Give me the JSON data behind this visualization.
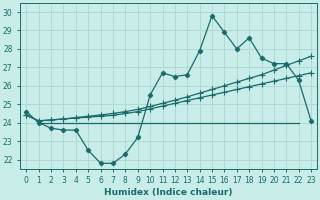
{
  "xlabel": "Humidex (Indice chaleur)",
  "ylabel": "",
  "bg_color": "#c8ece8",
  "grid_color": "#b0d8d4",
  "line_color": "#1a6b6b",
  "xlim": [
    -0.5,
    23.5
  ],
  "ylim": [
    21.5,
    30.5
  ],
  "yticks": [
    22,
    23,
    24,
    25,
    26,
    27,
    28,
    29,
    30
  ],
  "xticks": [
    0,
    1,
    2,
    3,
    4,
    5,
    6,
    7,
    8,
    9,
    10,
    11,
    12,
    13,
    14,
    15,
    16,
    17,
    18,
    19,
    20,
    21,
    22,
    23
  ],
  "series1": [
    24.6,
    24.0,
    23.7,
    23.6,
    23.6,
    22.5,
    21.8,
    21.8,
    22.3,
    23.2,
    25.5,
    26.7,
    26.5,
    26.6,
    27.9,
    29.8,
    28.9,
    28.0,
    28.6,
    27.5,
    27.2,
    27.2,
    26.3,
    24.1
  ],
  "series2_trend_low": [
    24.4,
    24.1,
    24.15,
    24.2,
    24.25,
    24.3,
    24.35,
    24.4,
    24.5,
    24.6,
    24.75,
    24.9,
    25.05,
    25.2,
    25.35,
    25.5,
    25.65,
    25.8,
    25.95,
    26.1,
    26.25,
    26.4,
    26.55,
    26.7
  ],
  "series3_trend_high": [
    24.4,
    24.1,
    24.15,
    24.2,
    24.28,
    24.35,
    24.42,
    24.5,
    24.6,
    24.72,
    24.88,
    25.05,
    25.22,
    25.4,
    25.6,
    25.8,
    26.0,
    26.2,
    26.4,
    26.6,
    26.85,
    27.1,
    27.35,
    27.6
  ],
  "series4_flat_x": [
    1,
    2,
    3,
    4,
    5,
    6,
    7,
    8,
    9,
    10,
    11,
    12,
    13,
    14,
    15,
    16,
    17,
    18,
    19,
    20,
    21,
    22
  ],
  "series4_flat_y": [
    24.0,
    24.0,
    24.0,
    24.0,
    24.0,
    24.0,
    24.0,
    24.0,
    24.0,
    24.0,
    24.0,
    24.0,
    24.0,
    24.0,
    24.0,
    24.0,
    24.0,
    24.0,
    24.0,
    24.0,
    24.0,
    24.0
  ]
}
